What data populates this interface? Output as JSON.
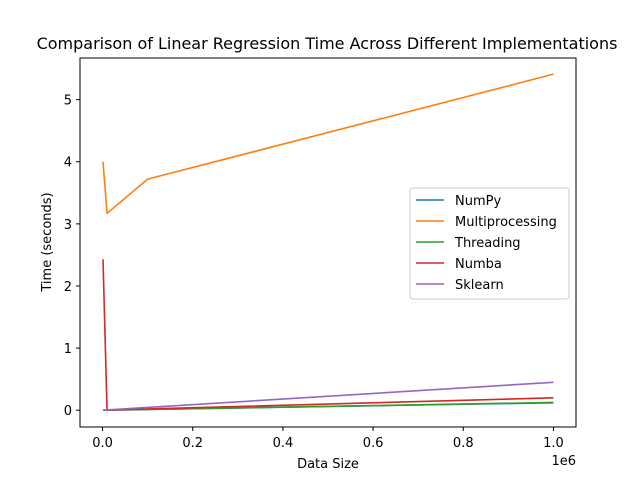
{
  "chart_data": {
    "type": "line",
    "title": "Comparison of Linear Regression Time Across Different Implementations",
    "xlabel": "Data Size",
    "ylabel": "Time (seconds)",
    "x_offset_label": "1e6",
    "x": [
      1000,
      10000,
      100000,
      1000000
    ],
    "xlim": [
      -50000,
      1050000
    ],
    "ylim": [
      -0.27,
      5.67
    ],
    "x_ticks": [
      0,
      200000,
      400000,
      600000,
      800000,
      1000000
    ],
    "x_tick_labels": [
      "0.0",
      "0.2",
      "0.4",
      "0.6",
      "0.8",
      "1.0"
    ],
    "y_ticks": [
      0,
      1,
      2,
      3,
      4,
      5
    ],
    "y_tick_labels": [
      "0",
      "1",
      "2",
      "3",
      "4",
      "5"
    ],
    "grid": false,
    "legend_position": "center-right",
    "series": [
      {
        "name": "NumPy",
        "color": "#1f77b4",
        "values": [
          0.001,
          0.002,
          0.012,
          0.12
        ]
      },
      {
        "name": "Multiprocessing",
        "color": "#ff7f0e",
        "values": [
          4.0,
          3.17,
          3.72,
          5.41
        ]
      },
      {
        "name": "Threading",
        "color": "#2ca02c",
        "values": [
          0.001,
          0.002,
          0.013,
          0.125
        ]
      },
      {
        "name": "Numba",
        "color": "#d62728",
        "values": [
          2.43,
          0.003,
          0.02,
          0.2
        ]
      },
      {
        "name": "Sklearn",
        "color": "#9467bd",
        "values": [
          0.002,
          0.005,
          0.045,
          0.45
        ]
      }
    ]
  }
}
